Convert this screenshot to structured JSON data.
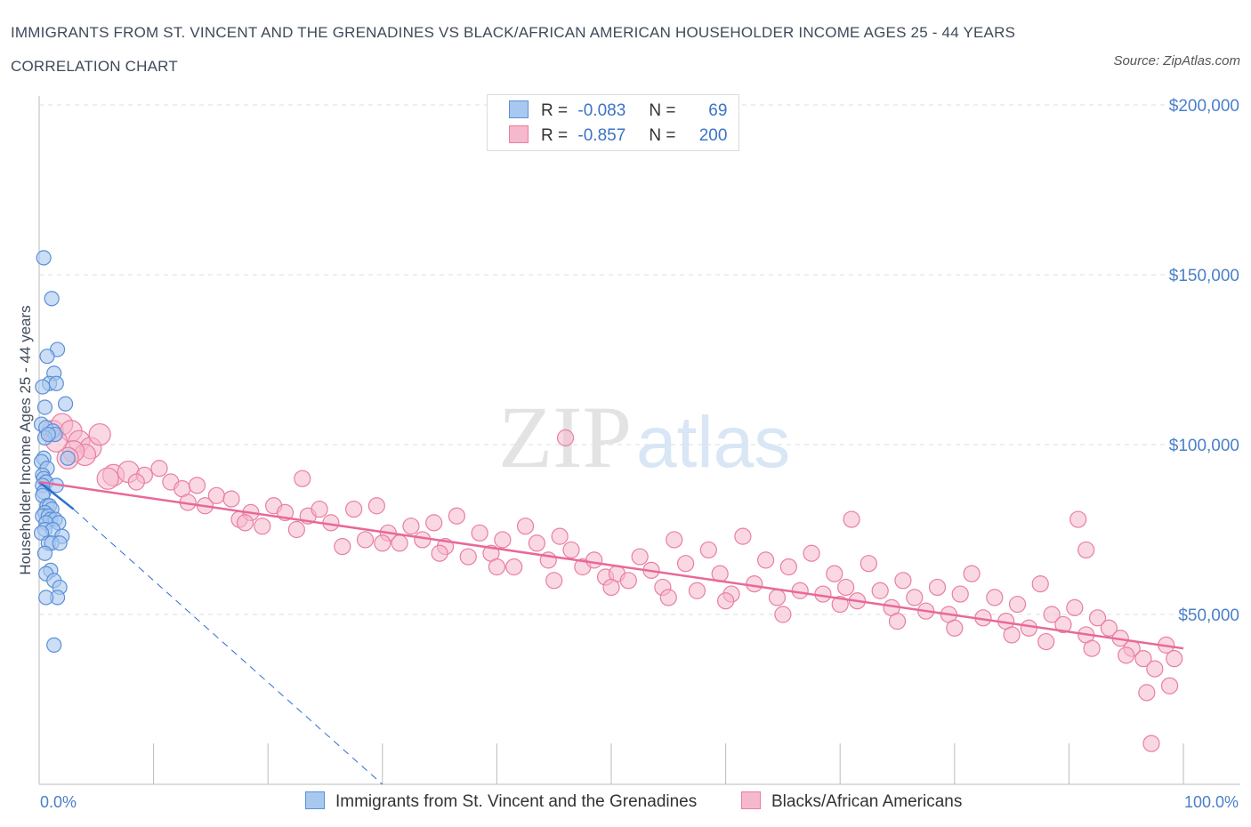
{
  "title": "IMMIGRANTS FROM ST. VINCENT AND THE GRENADINES VS BLACK/AFRICAN AMERICAN HOUSEHOLDER INCOME AGES 25 - 44 YEARS CORRELATION CHART",
  "source": "Source: ZipAtlas.com",
  "watermark": {
    "zip": "ZIP",
    "atlas": "atlas"
  },
  "legend": {
    "r_label": "R =",
    "n_label": "N =",
    "series1": {
      "r": "-0.083",
      "n": "69"
    },
    "series2": {
      "r": "-0.857",
      "n": "200"
    }
  },
  "colors": {
    "series1_fill": "#a8c8f0",
    "series1_stroke": "#5b8fd6",
    "series1_line": "#2f6fd0",
    "series2_fill": "#f6b8cc",
    "series2_stroke": "#e87fa0",
    "series2_line": "#e8689a",
    "grid": "#dddddd",
    "tick_text": "#4a7fc9"
  },
  "chart_data": {
    "type": "scatter",
    "xlabel": "",
    "ylabel": "Householder Income Ages 25 - 44 years",
    "xlim": [
      0,
      100
    ],
    "ylim": [
      0,
      200000
    ],
    "x_tick_labels": [
      "0.0%",
      "100.0%"
    ],
    "y_ticks": [
      50000,
      100000,
      150000,
      200000
    ],
    "y_tick_labels": [
      "$50,000",
      "$100,000",
      "$150,000",
      "$200,000"
    ],
    "grid": true,
    "legend_position": "top-center",
    "series": [
      {
        "name": "Immigrants from St. Vincent and the Grenadines",
        "trend": {
          "x": [
            0,
            3
          ],
          "y": [
            89000,
            81000
          ]
        },
        "trend_extension": {
          "x": [
            3,
            30
          ],
          "y": [
            81000,
            0
          ]
        },
        "points": [
          [
            0.4,
            155000
          ],
          [
            1.1,
            143000
          ],
          [
            1.6,
            128000
          ],
          [
            0.7,
            126000
          ],
          [
            1.3,
            121000
          ],
          [
            0.9,
            118000
          ],
          [
            1.5,
            118000
          ],
          [
            0.3,
            117000
          ],
          [
            2.3,
            112000
          ],
          [
            0.5,
            111000
          ],
          [
            0.2,
            106000
          ],
          [
            0.6,
            105000
          ],
          [
            1.2,
            104000
          ],
          [
            1.4,
            103000
          ],
          [
            0.5,
            102000
          ],
          [
            0.8,
            103000
          ],
          [
            2.5,
            96000
          ],
          [
            0.4,
            96000
          ],
          [
            0.2,
            95000
          ],
          [
            0.7,
            93000
          ],
          [
            0.3,
            91000
          ],
          [
            0.4,
            90000
          ],
          [
            0.6,
            89000
          ],
          [
            0.3,
            88000
          ],
          [
            1.5,
            88000
          ],
          [
            0.4,
            86000
          ],
          [
            0.3,
            85000
          ],
          [
            0.7,
            82000
          ],
          [
            0.9,
            82000
          ],
          [
            1.1,
            81000
          ],
          [
            0.5,
            80000
          ],
          [
            0.3,
            79000
          ],
          [
            0.8,
            79000
          ],
          [
            1.0,
            78000
          ],
          [
            1.4,
            78000
          ],
          [
            1.7,
            77000
          ],
          [
            0.6,
            77000
          ],
          [
            0.5,
            75000
          ],
          [
            1.2,
            75000
          ],
          [
            0.2,
            74000
          ],
          [
            2.0,
            73000
          ],
          [
            0.8,
            71000
          ],
          [
            1.1,
            71000
          ],
          [
            1.8,
            71000
          ],
          [
            0.5,
            68000
          ],
          [
            1.0,
            63000
          ],
          [
            0.6,
            62000
          ],
          [
            1.3,
            60000
          ],
          [
            1.8,
            58000
          ],
          [
            1.6,
            55000
          ],
          [
            0.6,
            55000
          ],
          [
            1.3,
            41000
          ]
        ]
      },
      {
        "name": "Blacks/African Americans",
        "trend": {
          "x": [
            0,
            100
          ],
          "y": [
            89000,
            40000
          ]
        },
        "points": [
          [
            1.2,
            104000
          ],
          [
            2.0,
            106000
          ],
          [
            2.8,
            104000
          ],
          [
            3.5,
            101000
          ],
          [
            4.5,
            99000
          ],
          [
            5.3,
            103000
          ],
          [
            4.0,
            97000
          ],
          [
            6.5,
            91000
          ],
          [
            7.8,
            92000
          ],
          [
            9.2,
            91000
          ],
          [
            10.5,
            93000
          ],
          [
            11.5,
            89000
          ],
          [
            12.5,
            87000
          ],
          [
            13.8,
            88000
          ],
          [
            14.5,
            82000
          ],
          [
            15.5,
            85000
          ],
          [
            16.8,
            84000
          ],
          [
            17.5,
            78000
          ],
          [
            18.5,
            80000
          ],
          [
            19.5,
            76000
          ],
          [
            20.5,
            82000
          ],
          [
            21.5,
            80000
          ],
          [
            22.5,
            75000
          ],
          [
            23.5,
            79000
          ],
          [
            24.5,
            81000
          ],
          [
            25.5,
            77000
          ],
          [
            26.5,
            70000
          ],
          [
            27.5,
            81000
          ],
          [
            28.5,
            72000
          ],
          [
            29.5,
            82000
          ],
          [
            30.5,
            74000
          ],
          [
            31.5,
            71000
          ],
          [
            32.5,
            76000
          ],
          [
            33.5,
            72000
          ],
          [
            34.5,
            77000
          ],
          [
            35.5,
            70000
          ],
          [
            36.5,
            79000
          ],
          [
            37.5,
            67000
          ],
          [
            38.5,
            74000
          ],
          [
            39.5,
            68000
          ],
          [
            40.5,
            72000
          ],
          [
            41.5,
            64000
          ],
          [
            42.5,
            76000
          ],
          [
            43.5,
            71000
          ],
          [
            44.5,
            66000
          ],
          [
            45.5,
            73000
          ],
          [
            46.5,
            69000
          ],
          [
            47.5,
            64000
          ],
          [
            48.5,
            66000
          ],
          [
            49.5,
            61000
          ],
          [
            50.5,
            62000
          ],
          [
            51.5,
            60000
          ],
          [
            52.5,
            67000
          ],
          [
            53.5,
            63000
          ],
          [
            54.5,
            58000
          ],
          [
            55.5,
            72000
          ],
          [
            56.5,
            65000
          ],
          [
            57.5,
            57000
          ],
          [
            58.5,
            69000
          ],
          [
            59.5,
            62000
          ],
          [
            60.5,
            56000
          ],
          [
            61.5,
            73000
          ],
          [
            62.5,
            59000
          ],
          [
            63.5,
            66000
          ],
          [
            64.5,
            55000
          ],
          [
            65.5,
            64000
          ],
          [
            66.5,
            57000
          ],
          [
            67.5,
            68000
          ],
          [
            68.5,
            56000
          ],
          [
            69.5,
            62000
          ],
          [
            70.5,
            58000
          ],
          [
            71.5,
            54000
          ],
          [
            72.5,
            65000
          ],
          [
            73.5,
            57000
          ],
          [
            74.5,
            52000
          ],
          [
            75.5,
            60000
          ],
          [
            76.5,
            55000
          ],
          [
            77.5,
            51000
          ],
          [
            78.5,
            58000
          ],
          [
            79.5,
            50000
          ],
          [
            80.5,
            56000
          ],
          [
            81.5,
            62000
          ],
          [
            82.5,
            49000
          ],
          [
            83.5,
            55000
          ],
          [
            84.5,
            48000
          ],
          [
            85.5,
            53000
          ],
          [
            86.5,
            46000
          ],
          [
            87.5,
            59000
          ],
          [
            88.5,
            50000
          ],
          [
            89.5,
            47000
          ],
          [
            90.5,
            52000
          ],
          [
            91.5,
            44000
          ],
          [
            92.5,
            49000
          ],
          [
            93.5,
            46000
          ],
          [
            94.5,
            43000
          ],
          [
            95.5,
            40000
          ],
          [
            96.5,
            37000
          ],
          [
            97.5,
            34000
          ],
          [
            98.5,
            41000
          ],
          [
            99.2,
            37000
          ],
          [
            98.8,
            29000
          ],
          [
            97.2,
            12000
          ],
          [
            96.8,
            27000
          ],
          [
            90.8,
            78000
          ],
          [
            91.5,
            69000
          ],
          [
            71.0,
            78000
          ],
          [
            46.0,
            102000
          ],
          [
            23.0,
            90000
          ],
          [
            30.0,
            71000
          ],
          [
            35.0,
            68000
          ],
          [
            40.0,
            64000
          ],
          [
            45.0,
            60000
          ],
          [
            50.0,
            58000
          ],
          [
            55.0,
            55000
          ],
          [
            60.0,
            54000
          ],
          [
            65.0,
            50000
          ],
          [
            70.0,
            53000
          ],
          [
            75.0,
            48000
          ],
          [
            80.0,
            46000
          ],
          [
            85.0,
            44000
          ],
          [
            88.0,
            42000
          ],
          [
            92.0,
            40000
          ],
          [
            95.0,
            38000
          ],
          [
            18.0,
            77000
          ],
          [
            13.0,
            83000
          ],
          [
            8.5,
            89000
          ],
          [
            6.0,
            90000
          ],
          [
            3.0,
            98000
          ],
          [
            2.5,
            96000
          ],
          [
            1.5,
            101000
          ]
        ]
      }
    ]
  }
}
